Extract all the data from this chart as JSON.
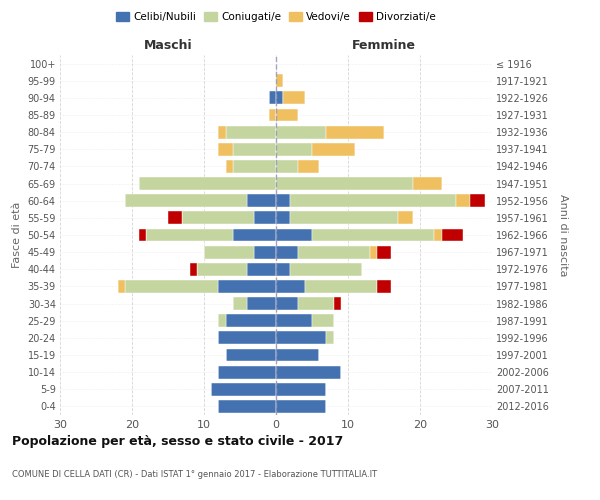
{
  "age_groups": [
    "0-4",
    "5-9",
    "10-14",
    "15-19",
    "20-24",
    "25-29",
    "30-34",
    "35-39",
    "40-44",
    "45-49",
    "50-54",
    "55-59",
    "60-64",
    "65-69",
    "70-74",
    "75-79",
    "80-84",
    "85-89",
    "90-94",
    "95-99",
    "100+"
  ],
  "birth_years": [
    "2012-2016",
    "2007-2011",
    "2002-2006",
    "1997-2001",
    "1992-1996",
    "1987-1991",
    "1982-1986",
    "1977-1981",
    "1972-1976",
    "1967-1971",
    "1962-1966",
    "1957-1961",
    "1952-1956",
    "1947-1951",
    "1942-1946",
    "1937-1941",
    "1932-1936",
    "1927-1931",
    "1922-1926",
    "1917-1921",
    "≤ 1916"
  ],
  "males": {
    "celibe": [
      8,
      9,
      8,
      7,
      8,
      7,
      4,
      8,
      4,
      3,
      6,
      3,
      4,
      0,
      0,
      0,
      0,
      0,
      1,
      0,
      0
    ],
    "coniugato": [
      0,
      0,
      0,
      0,
      0,
      1,
      2,
      13,
      7,
      7,
      12,
      10,
      17,
      19,
      6,
      6,
      7,
      0,
      0,
      0,
      0
    ],
    "vedovo": [
      0,
      0,
      0,
      0,
      0,
      0,
      0,
      1,
      0,
      0,
      0,
      0,
      0,
      0,
      1,
      2,
      1,
      1,
      0,
      0,
      0
    ],
    "divorziato": [
      0,
      0,
      0,
      0,
      0,
      0,
      0,
      0,
      1,
      0,
      1,
      2,
      0,
      0,
      0,
      0,
      0,
      0,
      0,
      0,
      0
    ]
  },
  "females": {
    "nubile": [
      7,
      7,
      9,
      6,
      7,
      5,
      3,
      4,
      2,
      3,
      5,
      2,
      2,
      0,
      0,
      0,
      0,
      0,
      1,
      0,
      0
    ],
    "coniugata": [
      0,
      0,
      0,
      0,
      1,
      3,
      5,
      10,
      10,
      10,
      17,
      15,
      23,
      19,
      3,
      5,
      7,
      0,
      0,
      0,
      0
    ],
    "vedova": [
      0,
      0,
      0,
      0,
      0,
      0,
      0,
      0,
      0,
      1,
      1,
      2,
      2,
      4,
      3,
      6,
      8,
      3,
      3,
      1,
      0
    ],
    "divorziata": [
      0,
      0,
      0,
      0,
      0,
      0,
      1,
      2,
      0,
      2,
      3,
      0,
      2,
      0,
      0,
      0,
      0,
      0,
      0,
      0,
      0
    ]
  },
  "colors": {
    "celibe": "#4472b0",
    "coniugato": "#c5d5a0",
    "vedovo": "#f0c060",
    "divorziato": "#c00000"
  },
  "title": "Popolazione per età, sesso e stato civile - 2017",
  "subtitle": "COMUNE DI CELLA DATI (CR) - Dati ISTAT 1° gennaio 2017 - Elaborazione TUTTITALIA.IT",
  "xlabel_left": "Maschi",
  "xlabel_right": "Femmine",
  "ylabel_left": "Fasce di età",
  "ylabel_right": "Anni di nascita",
  "xlim": 30,
  "bg_color": "#ffffff",
  "grid_color": "#cccccc"
}
